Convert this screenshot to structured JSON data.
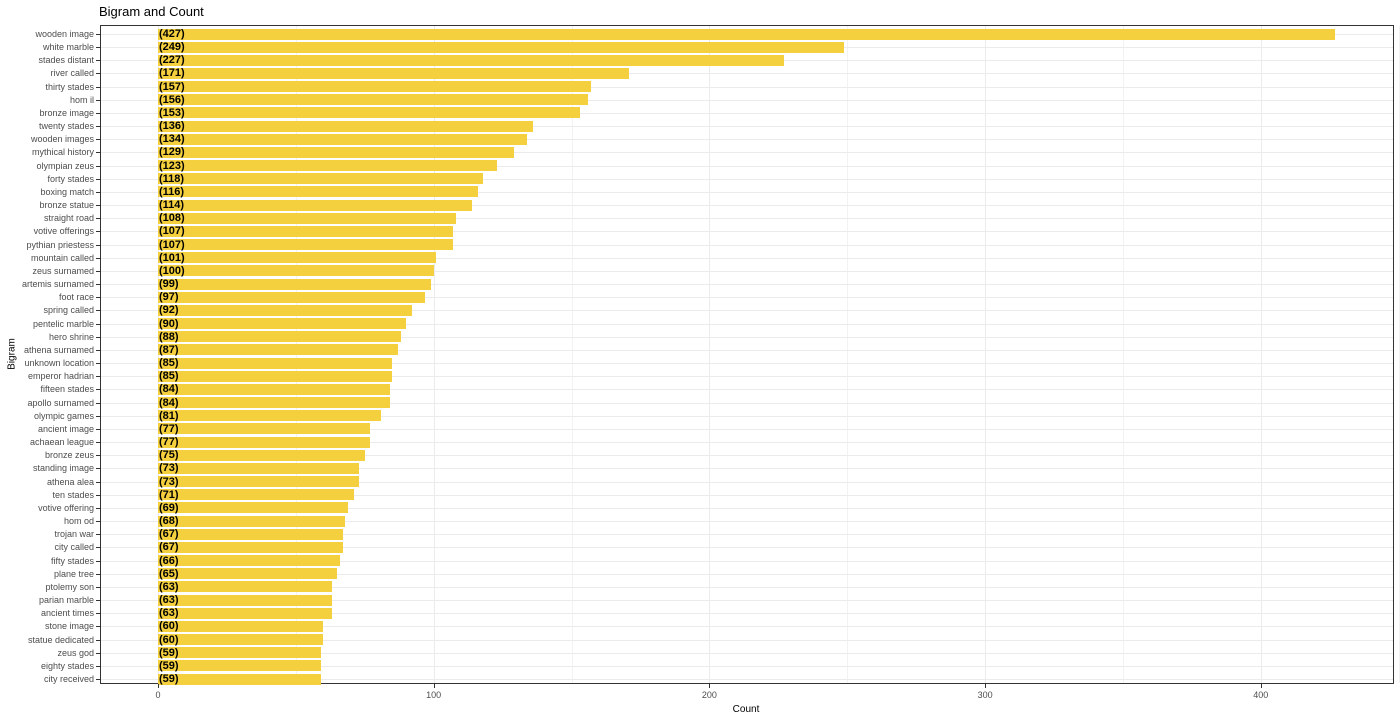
{
  "chart_data": {
    "type": "bar",
    "orientation": "horizontal",
    "title": "Bigram and Count",
    "xlabel": "Count",
    "ylabel": "Bigram",
    "xlim": [
      -20,
      450
    ],
    "xticks": [
      0,
      100,
      200,
      300,
      400
    ],
    "grid": true,
    "legend": null,
    "bar_color": "#F4D03F",
    "value_label_format": "(n)",
    "categories": [
      "wooden image",
      "white marble",
      "stades distant",
      "river called",
      "thirty stades",
      "hom il",
      "bronze image",
      "twenty stades",
      "wooden images",
      "mythical history",
      "olympian zeus",
      "forty stades",
      "boxing match",
      "bronze statue",
      "straight road",
      "votive offerings",
      "pythian priestess",
      "mountain called",
      "zeus surnamed",
      "artemis surnamed",
      "foot race",
      "spring called",
      "pentelic marble",
      "hero shrine",
      "athena surnamed",
      "unknown location",
      "emperor hadrian",
      "fifteen stades",
      "apollo surnamed",
      "olympic games",
      "ancient image",
      "achaean league",
      "bronze zeus",
      "standing image",
      "athena alea",
      "ten stades",
      "votive offering",
      "hom od",
      "trojan war",
      "city called",
      "fifty stades",
      "plane tree",
      "ptolemy son",
      "parian marble",
      "ancient times",
      "stone image",
      "statue dedicated",
      "zeus god",
      "eighty stades",
      "city received"
    ],
    "values": [
      427,
      249,
      227,
      171,
      157,
      156,
      153,
      136,
      134,
      129,
      123,
      118,
      116,
      114,
      108,
      107,
      107,
      101,
      100,
      99,
      97,
      92,
      90,
      88,
      87,
      85,
      85,
      84,
      84,
      81,
      77,
      77,
      75,
      73,
      73,
      71,
      69,
      68,
      67,
      67,
      66,
      65,
      63,
      63,
      63,
      60,
      60,
      59,
      59,
      59
    ]
  }
}
